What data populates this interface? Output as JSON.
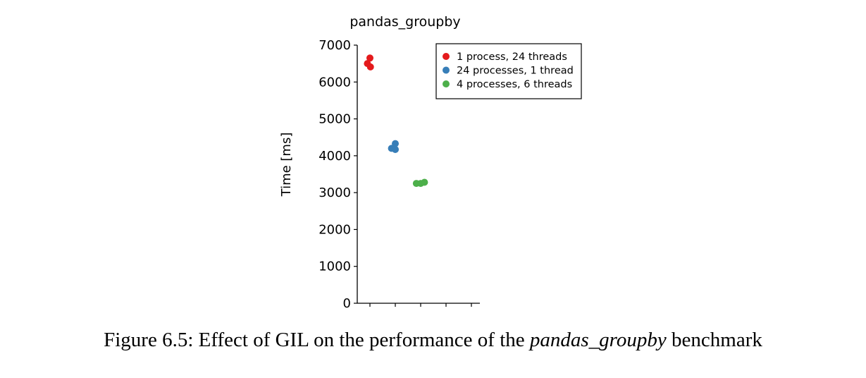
{
  "chart_data": {
    "type": "scatter",
    "title": "pandas_groupby",
    "ylabel": "Time [ms]",
    "xlabel": "",
    "ylim": [
      0,
      7000
    ],
    "yticks": [
      0,
      1000,
      2000,
      3000,
      4000,
      5000,
      6000,
      7000
    ],
    "xtick_count": 5,
    "grid": false,
    "legend_position": "top-right",
    "series": [
      {
        "name": "1 process, 24 threads",
        "color": "#e41a1c",
        "points": [
          {
            "group": 0,
            "jitter": -0.1,
            "y": 6500
          },
          {
            "group": 0,
            "jitter": 0.0,
            "y": 6650
          },
          {
            "group": 0,
            "jitter": 0.02,
            "y": 6410
          }
        ]
      },
      {
        "name": "24 processes, 1 thread",
        "color": "#377eb8",
        "points": [
          {
            "group": 1,
            "jitter": -0.15,
            "y": 4200
          },
          {
            "group": 1,
            "jitter": 0.0,
            "y": 4330
          },
          {
            "group": 1,
            "jitter": 0.0,
            "y": 4170
          }
        ]
      },
      {
        "name": "4 processes, 6 threads",
        "color": "#4daf4a",
        "points": [
          {
            "group": 2,
            "jitter": -0.17,
            "y": 3250
          },
          {
            "group": 2,
            "jitter": 0.0,
            "y": 3250
          },
          {
            "group": 2,
            "jitter": 0.15,
            "y": 3280
          }
        ]
      }
    ]
  },
  "caption": {
    "prefix": "Figure 6.5: Effect of GIL on the performance of the ",
    "emphasis": "pandas_groupby",
    "suffix": " benchmark"
  }
}
